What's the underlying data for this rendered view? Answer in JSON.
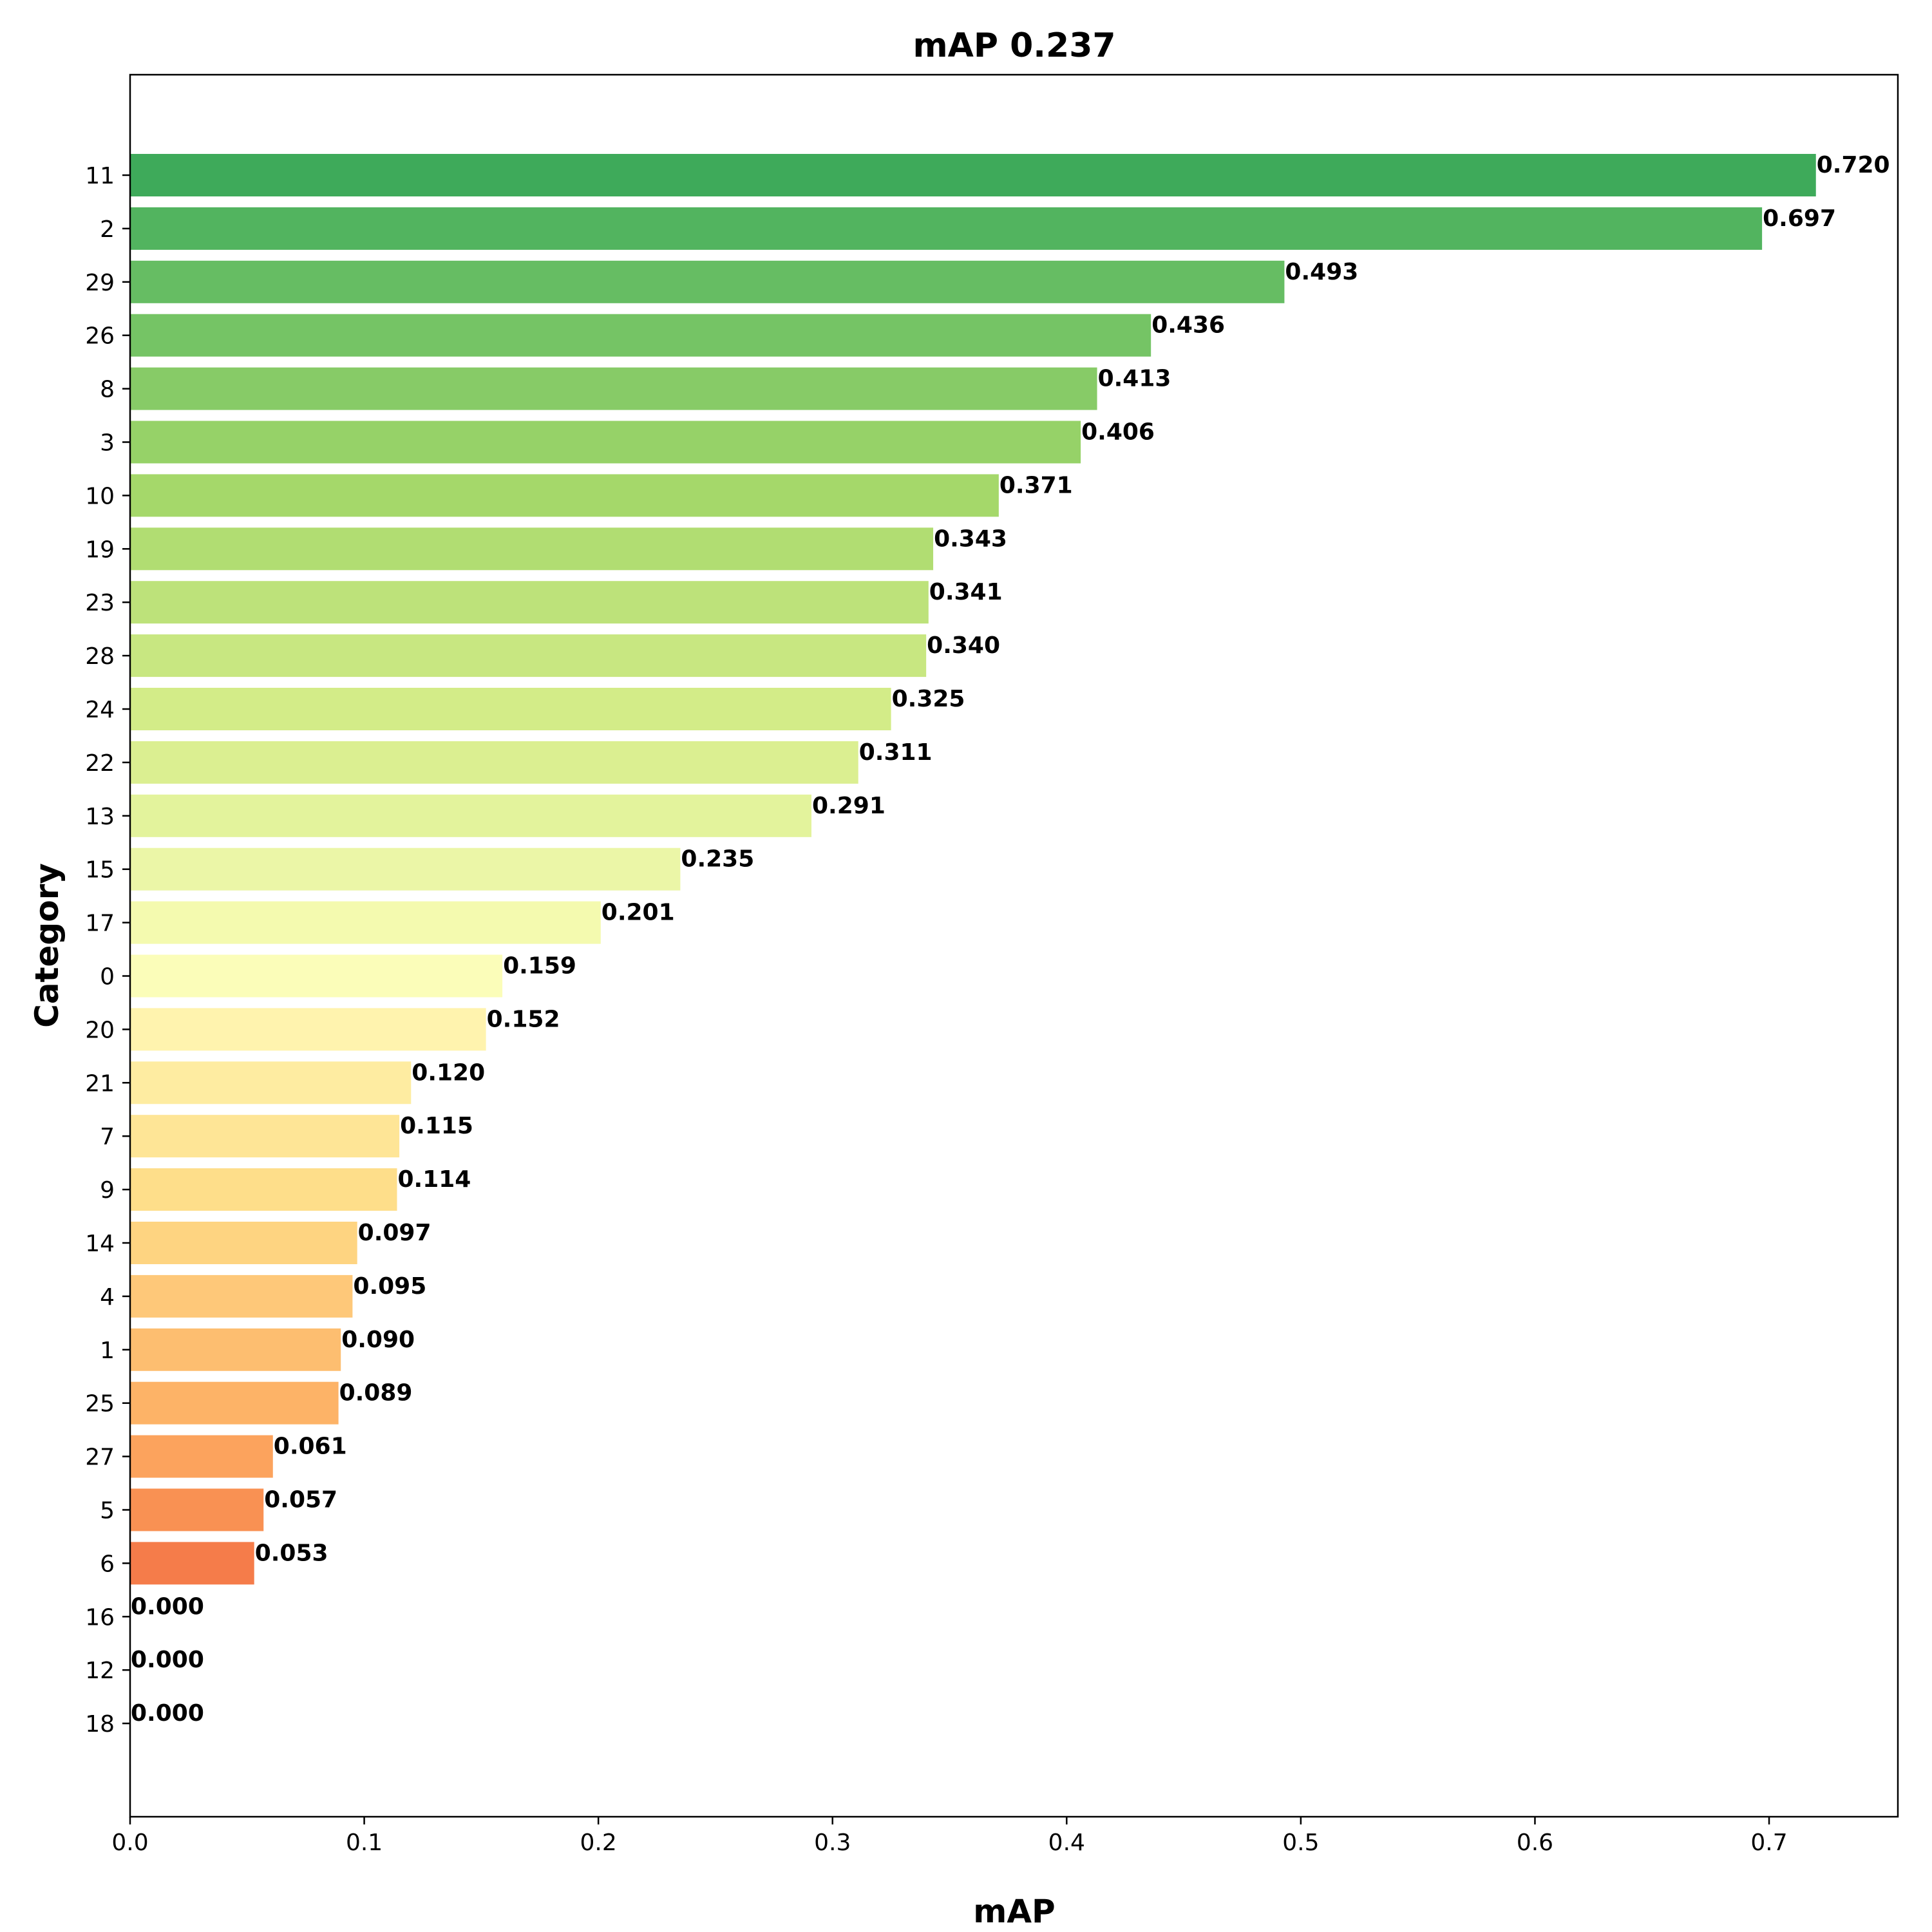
{
  "chart_data": {
    "type": "bar",
    "orientation": "horizontal",
    "title": "mAP 0.237",
    "xlabel": "mAP",
    "ylabel": "Category",
    "xlim": [
      0,
      0.755
    ],
    "xticks": [
      "0.0",
      "0.1",
      "0.2",
      "0.3",
      "0.4",
      "0.5",
      "0.6",
      "0.7"
    ],
    "grid": false,
    "categories": [
      "11",
      "2",
      "29",
      "26",
      "8",
      "3",
      "10",
      "19",
      "23",
      "28",
      "24",
      "22",
      "13",
      "15",
      "17",
      "0",
      "20",
      "21",
      "7",
      "9",
      "14",
      "4",
      "1",
      "25",
      "27",
      "5",
      "6",
      "16",
      "12",
      "18"
    ],
    "values": [
      0.72,
      0.697,
      0.493,
      0.436,
      0.413,
      0.406,
      0.371,
      0.343,
      0.341,
      0.34,
      0.325,
      0.311,
      0.291,
      0.235,
      0.201,
      0.159,
      0.152,
      0.12,
      0.115,
      0.114,
      0.097,
      0.095,
      0.09,
      0.089,
      0.061,
      0.057,
      0.053,
      0.0,
      0.0,
      0.0
    ],
    "value_labels": [
      "0.720",
      "0.697",
      "0.493",
      "0.436",
      "0.413",
      "0.406",
      "0.371",
      "0.343",
      "0.341",
      "0.340",
      "0.325",
      "0.311",
      "0.291",
      "0.235",
      "0.201",
      "0.159",
      "0.152",
      "0.120",
      "0.115",
      "0.114",
      "0.097",
      "0.095",
      "0.090",
      "0.089",
      "0.061",
      "0.057",
      "0.053",
      "0.000",
      "0.000",
      "0.000"
    ],
    "colors": [
      "#3eaa5a",
      "#52b45f",
      "#66bd63",
      "#75c465",
      "#87cb67",
      "#96d268",
      "#a5d86a",
      "#b1dd72",
      "#bde27a",
      "#c8e781",
      "#d3ec88",
      "#dbef91",
      "#e3f39c",
      "#ebf6a7",
      "#f4faaf",
      "#fbfdb9",
      "#fff3ae",
      "#feeca1",
      "#fee596",
      "#fede8a",
      "#fed481",
      "#fec879",
      "#fdbe70",
      "#fdb367",
      "#fca35d",
      "#f99153",
      "#f57c4a",
      "#f16846",
      "#eb5a40",
      "#e64b35"
    ]
  }
}
